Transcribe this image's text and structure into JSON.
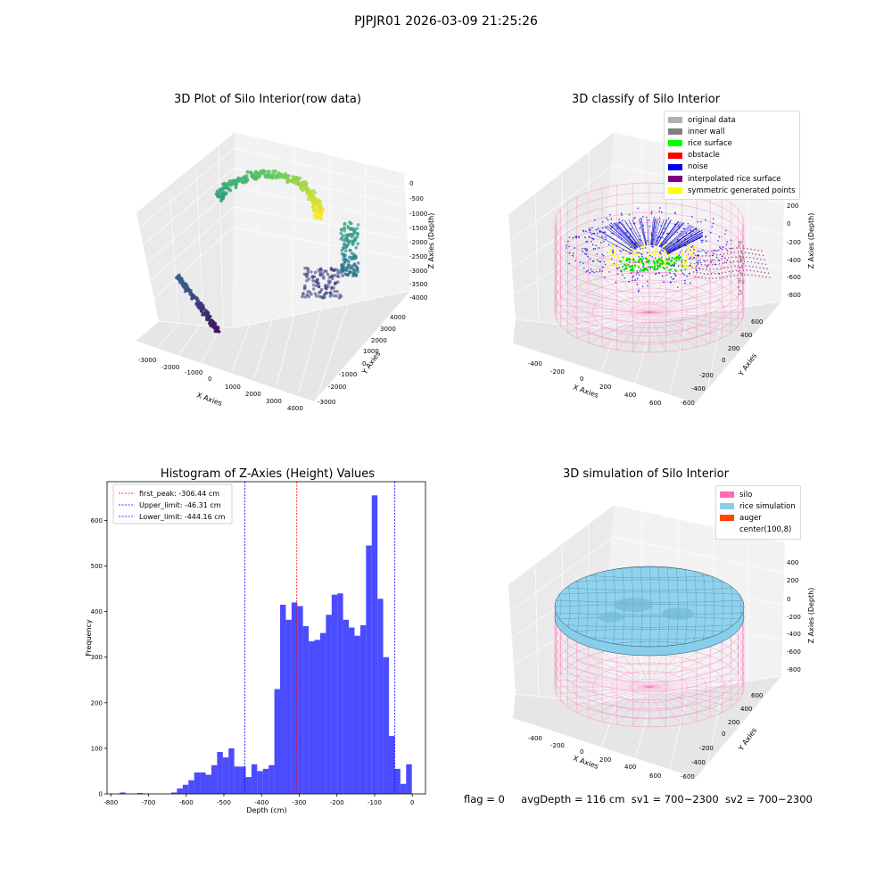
{
  "figure": {
    "suptitle": "PJPJR01 2026-03-09 21:25:26",
    "status": {
      "flag": "flag = 0",
      "avg_depth": "avgDepth = 116 cm",
      "sv1": "sv1 = 700~2300",
      "sv2": "sv2 = 700~2300"
    }
  },
  "chart_data": [
    {
      "type": "scatter",
      "projection": "3d",
      "title": "3D Plot of Silo Interior(row data)",
      "xlabel": "X Axies",
      "ylabel": "Y Axies",
      "zlabel": "Z Axies (Depth)",
      "x_ticks": [
        "-3000",
        "-2000",
        "-1000",
        "0",
        "1000",
        "2000",
        "3000",
        "4000"
      ],
      "y_ticks": [
        "-3000",
        "-2000",
        "-1000",
        "0",
        "1000",
        "2000",
        "3000",
        "4000"
      ],
      "z_ticks": [
        "0",
        "-500",
        "-1000",
        "-1500",
        "-2000",
        "-2500",
        "-3000",
        "-3500",
        "-4000"
      ],
      "colormap": "viridis",
      "clusters": [
        "yellow-green arc",
        "dark purple curve",
        "teal/blue wall band",
        "purple lower cluster"
      ]
    },
    {
      "type": "scatter",
      "projection": "3d",
      "title": "3D classify of Silo Interior",
      "xlabel": "X Axies",
      "ylabel": "Y Axies",
      "zlabel": "Z Axies (Depth)",
      "x_ticks": [
        "-400",
        "-200",
        "0",
        "200",
        "400",
        "600"
      ],
      "y_ticks": [
        "-600",
        "-400",
        "-200",
        "0",
        "200",
        "400",
        "600"
      ],
      "z_ticks": [
        "200",
        "0",
        "-200",
        "-400",
        "-600",
        "-800"
      ],
      "legend": [
        {
          "label": "original data",
          "color": "#b0b0b0"
        },
        {
          "label": "inner wall",
          "color": "#808080"
        },
        {
          "label": "rice surface",
          "color": "#00ff00"
        },
        {
          "label": "obstacle",
          "color": "#ff0000"
        },
        {
          "label": "noise",
          "color": "#0000ee"
        },
        {
          "label": "interpolated rice surface",
          "color": "#800080"
        },
        {
          "label": "symmetric generated points",
          "color": "#ffff00"
        }
      ]
    },
    {
      "type": "bar",
      "title": "Histogram of Z-Axies (Height) Values",
      "xlabel": "Depth (cm)",
      "ylabel": "Frequency",
      "xlim": [
        -810,
        35
      ],
      "ylim": [
        0,
        685
      ],
      "x_ticks": [
        -800,
        -700,
        -600,
        -500,
        -400,
        -300,
        -200,
        -100,
        0
      ],
      "y_ticks": [
        0,
        100,
        200,
        300,
        400,
        500,
        600
      ],
      "bin_width": 15.2,
      "bar_color": "#0000ff",
      "bins": [
        {
          "x": -768.5,
          "y": 3
        },
        {
          "x": -723.0,
          "y": 2
        },
        {
          "x": -632.0,
          "y": 3
        },
        {
          "x": -616.8,
          "y": 12
        },
        {
          "x": -601.6,
          "y": 20
        },
        {
          "x": -586.4,
          "y": 30
        },
        {
          "x": -571.2,
          "y": 47
        },
        {
          "x": -556.0,
          "y": 47
        },
        {
          "x": -540.8,
          "y": 42
        },
        {
          "x": -525.6,
          "y": 63
        },
        {
          "x": -510.4,
          "y": 92
        },
        {
          "x": -495.2,
          "y": 80
        },
        {
          "x": -480.0,
          "y": 100
        },
        {
          "x": -464.8,
          "y": 60
        },
        {
          "x": -449.6,
          "y": 60
        },
        {
          "x": -434.4,
          "y": 37
        },
        {
          "x": -419.2,
          "y": 65
        },
        {
          "x": -404.0,
          "y": 50
        },
        {
          "x": -388.8,
          "y": 55
        },
        {
          "x": -373.6,
          "y": 63
        },
        {
          "x": -358.4,
          "y": 230
        },
        {
          "x": -343.2,
          "y": 415
        },
        {
          "x": -328.0,
          "y": 382
        },
        {
          "x": -312.8,
          "y": 420
        },
        {
          "x": -297.6,
          "y": 412
        },
        {
          "x": -282.4,
          "y": 368
        },
        {
          "x": -267.2,
          "y": 335
        },
        {
          "x": -252.0,
          "y": 338
        },
        {
          "x": -236.8,
          "y": 353
        },
        {
          "x": -221.6,
          "y": 393
        },
        {
          "x": -206.4,
          "y": 437
        },
        {
          "x": -191.2,
          "y": 440
        },
        {
          "x": -176.0,
          "y": 382
        },
        {
          "x": -160.8,
          "y": 365
        },
        {
          "x": -145.6,
          "y": 347
        },
        {
          "x": -130.4,
          "y": 370
        },
        {
          "x": -115.2,
          "y": 545
        },
        {
          "x": -100.0,
          "y": 655
        },
        {
          "x": -84.8,
          "y": 428
        },
        {
          "x": -69.6,
          "y": 300
        },
        {
          "x": -54.4,
          "y": 127
        },
        {
          "x": -39.2,
          "y": 55
        },
        {
          "x": -24.0,
          "y": 22
        },
        {
          "x": -8.8,
          "y": 65
        }
      ],
      "vlines": [
        {
          "label": "first_peak: -306.44 cm",
          "x": -306.44,
          "color": "#ff0000"
        },
        {
          "label": "Upper_limit: -46.31 cm",
          "x": -46.31,
          "color": "#0000ff"
        },
        {
          "label": "Lower_limit: -444.16 cm",
          "x": -444.16,
          "color": "#0000ff"
        }
      ]
    },
    {
      "type": "surface",
      "projection": "3d",
      "title": "3D simulation of Silo Interior",
      "xlabel": "X Axies",
      "ylabel": "Y Axies",
      "zlabel": "Z Axies (Depth)",
      "x_ticks": [
        "-400",
        "-200",
        "0",
        "200",
        "400",
        "600"
      ],
      "y_ticks": [
        "-600",
        "-400",
        "-200",
        "0",
        "200",
        "400",
        "600"
      ],
      "z_ticks": [
        "400",
        "200",
        "0",
        "-200",
        "-400",
        "-600",
        "-800"
      ],
      "legend": [
        {
          "label": "silo",
          "color": "#ff69b4"
        },
        {
          "label": "rice simulation",
          "color": "#87ceeb"
        },
        {
          "label": "auger",
          "color": "#ff4500"
        },
        {
          "label": "center(100,8)",
          "color": "#ffffff"
        }
      ]
    }
  ]
}
